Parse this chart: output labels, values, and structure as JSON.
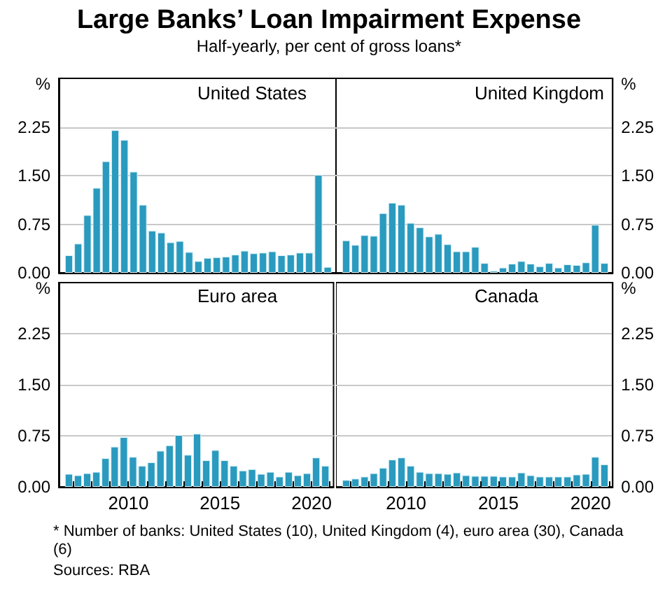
{
  "chart_data": [
    {
      "type": "bar",
      "title": "Large Banks’ Loan Impairment Expense",
      "subtitle": "Half-yearly, per cent of gross loans*",
      "ylabel": "%",
      "tick_labels": "y",
      "grid": "y",
      "x": [
        2006.75,
        2007.25,
        2007.75,
        2008.25,
        2008.75,
        2009.25,
        2009.75,
        2010.25,
        2010.75,
        2011.25,
        2011.75,
        2012.25,
        2012.75,
        2013.25,
        2013.75,
        2014.25,
        2014.75,
        2015.25,
        2015.75,
        2016.25,
        2016.75,
        2017.25,
        2017.75,
        2018.25,
        2018.75,
        2019.25,
        2019.75,
        2020.25,
        2020.75
      ],
      "xlim": [
        2006.2,
        2021.2
      ],
      "ylim": [
        0,
        3
      ],
      "yticks": [
        {
          "value": 0,
          "label": "0.00"
        },
        {
          "value": 0.75,
          "label": "0.75"
        },
        {
          "value": 1.5,
          "label": "1.50"
        },
        {
          "value": 2.25,
          "label": "2.25"
        }
      ],
      "series": [
        {
          "name": "United States",
          "color": "#2a9abe",
          "values": [
            0.27,
            0.45,
            0.89,
            1.31,
            1.72,
            2.2,
            2.05,
            1.56,
            1.05,
            0.65,
            0.62,
            0.47,
            0.49,
            0.32,
            0.18,
            0.23,
            0.24,
            0.25,
            0.28,
            0.34,
            0.3,
            0.31,
            0.33,
            0.27,
            0.28,
            0.31,
            0.31,
            1.51,
            0.09
          ]
        }
      ]
    },
    {
      "type": "bar",
      "y2label": "%",
      "tick_labels": "y",
      "grid": "y",
      "x": [
        2006.75,
        2007.25,
        2007.75,
        2008.25,
        2008.75,
        2009.25,
        2009.75,
        2010.25,
        2010.75,
        2011.25,
        2011.75,
        2012.25,
        2012.75,
        2013.25,
        2013.75,
        2014.25,
        2014.75,
        2015.25,
        2015.75,
        2016.25,
        2016.75,
        2017.25,
        2017.75,
        2018.25,
        2018.75,
        2019.25,
        2019.75,
        2020.25,
        2020.75
      ],
      "xlim": [
        2006.2,
        2021.2
      ],
      "y2lim": [
        0,
        3
      ],
      "y2ticks": [
        {
          "value": 0,
          "label": "0.00"
        },
        {
          "value": 0.75,
          "label": "0.75"
        },
        {
          "value": 1.5,
          "label": "1.50"
        },
        {
          "value": 2.25,
          "label": "2.25"
        }
      ],
      "series": [
        {
          "name": "United Kingdom",
          "color": "#2a9abe",
          "axis": "y2",
          "values": [
            0.5,
            0.43,
            0.58,
            0.57,
            0.92,
            1.08,
            1.05,
            0.77,
            0.7,
            0.56,
            0.6,
            0.44,
            0.33,
            0.33,
            0.4,
            0.15,
            0.03,
            0.08,
            0.14,
            0.18,
            0.14,
            0.1,
            0.15,
            0.08,
            0.13,
            0.12,
            0.16,
            0.74,
            0.15
          ]
        }
      ]
    },
    {
      "type": "bar",
      "ylabel": "%",
      "grid": "y",
      "x": [
        2006.75,
        2007.25,
        2007.75,
        2008.25,
        2008.75,
        2009.25,
        2009.75,
        2010.25,
        2010.75,
        2011.25,
        2011.75,
        2012.25,
        2012.75,
        2013.25,
        2013.75,
        2014.25,
        2014.75,
        2015.25,
        2015.75,
        2016.25,
        2016.75,
        2017.25,
        2017.75,
        2018.25,
        2018.75,
        2019.25,
        2019.75,
        2020.25,
        2020.75
      ],
      "xlim": [
        2006.2,
        2021.2
      ],
      "xticks": [
        {
          "value": 2007,
          "label": null
        },
        {
          "value": 2008,
          "label": null
        },
        {
          "value": 2009,
          "label": null
        },
        {
          "value": 2010,
          "label": "2010"
        },
        {
          "value": 2011,
          "label": null
        },
        {
          "value": 2012,
          "label": null
        },
        {
          "value": 2013,
          "label": null
        },
        {
          "value": 2014,
          "label": null
        },
        {
          "value": 2015,
          "label": "2015"
        },
        {
          "value": 2016,
          "label": null
        },
        {
          "value": 2017,
          "label": null
        },
        {
          "value": 2018,
          "label": null
        },
        {
          "value": 2019,
          "label": null
        },
        {
          "value": 2020,
          "label": "2020"
        },
        {
          "value": 2021,
          "label": null
        }
      ],
      "ylim": [
        0,
        3
      ],
      "yticks": [
        {
          "value": 0,
          "label": "0.00"
        },
        {
          "value": 0.75,
          "label": "0.75"
        },
        {
          "value": 1.5,
          "label": "1.50"
        },
        {
          "value": 2.25,
          "label": "2.25"
        }
      ],
      "series": [
        {
          "name": "Euro area",
          "color": "#2a9abe",
          "values": [
            0.19,
            0.17,
            0.2,
            0.22,
            0.42,
            0.59,
            0.73,
            0.44,
            0.31,
            0.36,
            0.53,
            0.61,
            0.76,
            0.47,
            0.78,
            0.39,
            0.54,
            0.39,
            0.31,
            0.24,
            0.26,
            0.19,
            0.22,
            0.15,
            0.22,
            0.17,
            0.2,
            0.43,
            0.31
          ]
        }
      ]
    },
    {
      "type": "bar",
      "y2label": "%",
      "grid": "y",
      "x": [
        2006.75,
        2007.25,
        2007.75,
        2008.25,
        2008.75,
        2009.25,
        2009.75,
        2010.25,
        2010.75,
        2011.25,
        2011.75,
        2012.25,
        2012.75,
        2013.25,
        2013.75,
        2014.25,
        2014.75,
        2015.25,
        2015.75,
        2016.25,
        2016.75,
        2017.25,
        2017.75,
        2018.25,
        2018.75,
        2019.25,
        2019.75,
        2020.25,
        2020.75
      ],
      "xlim": [
        2006.2,
        2021.2
      ],
      "xticks": [
        {
          "value": 2007,
          "label": null
        },
        {
          "value": 2008,
          "label": null
        },
        {
          "value": 2009,
          "label": null
        },
        {
          "value": 2010,
          "label": "2010"
        },
        {
          "value": 2011,
          "label": null
        },
        {
          "value": 2012,
          "label": null
        },
        {
          "value": 2013,
          "label": null
        },
        {
          "value": 2014,
          "label": null
        },
        {
          "value": 2015,
          "label": "2015"
        },
        {
          "value": 2016,
          "label": null
        },
        {
          "value": 2017,
          "label": null
        },
        {
          "value": 2018,
          "label": null
        },
        {
          "value": 2019,
          "label": null
        },
        {
          "value": 2020,
          "label": "2020"
        },
        {
          "value": 2021,
          "label": null
        }
      ],
      "y2lim": [
        0,
        3
      ],
      "y2ticks": [
        {
          "value": 0,
          "label": "0.00"
        },
        {
          "value": 0.75,
          "label": "0.75"
        },
        {
          "value": 1.5,
          "label": "1.50"
        },
        {
          "value": 2.25,
          "label": "2.25"
        }
      ],
      "annotations": [
        "*   Number of banks: United States (10), United Kingdom (4), euro area (30), Canada (6)",
        "Sources: RBA"
      ],
      "series": [
        {
          "name": "Canada",
          "color": "#2a9abe",
          "axis": "y2",
          "values": [
            0.1,
            0.12,
            0.15,
            0.2,
            0.28,
            0.4,
            0.43,
            0.31,
            0.22,
            0.2,
            0.2,
            0.19,
            0.21,
            0.17,
            0.16,
            0.16,
            0.16,
            0.15,
            0.15,
            0.21,
            0.17,
            0.15,
            0.15,
            0.15,
            0.15,
            0.18,
            0.19,
            0.44,
            0.33
          ]
        }
      ]
    }
  ]
}
